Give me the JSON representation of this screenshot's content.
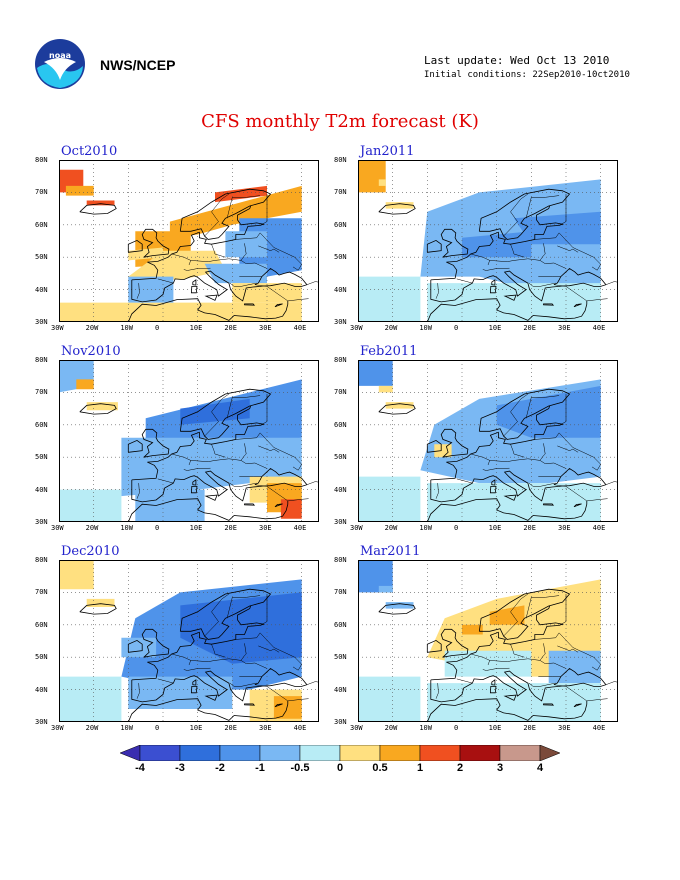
{
  "header": {
    "org": "NWS/NCEP",
    "last_update": "Last update: Wed Oct 13 2010",
    "initial_conditions": "Initial conditions: 22Sep2010-10ct2010"
  },
  "title": "CFS monthly T2m forecast (K)",
  "panels": [
    {
      "id": "oct2010",
      "label": "Oct2010"
    },
    {
      "id": "jan2011",
      "label": "Jan2011"
    },
    {
      "id": "nov2010",
      "label": "Nov2010"
    },
    {
      "id": "feb2011",
      "label": "Feb2011"
    },
    {
      "id": "dec2010",
      "label": "Dec2010"
    },
    {
      "id": "mar2011",
      "label": "Mar2011"
    }
  ],
  "lat_labels": [
    "80N",
    "70N",
    "60N",
    "50N",
    "40N",
    "30N"
  ],
  "lon_labels": [
    "30W",
    "20W",
    "10W",
    "0",
    "10E",
    "20E",
    "30E",
    "40E"
  ],
  "colorbar": {
    "labels": [
      "-4",
      "-3",
      "-2",
      "-1",
      "-0.5",
      "0",
      "0.5",
      "1",
      "2",
      "3",
      "4"
    ],
    "colors": [
      "#3a2db0",
      "#3b4fd1",
      "#2f6fdc",
      "#4f93ea",
      "#7ab8f3",
      "#b8ecf5",
      "#ffe080",
      "#f9a820",
      "#f05020",
      "#a81010",
      "#c8988c",
      "#7b4a3a"
    ]
  }
}
